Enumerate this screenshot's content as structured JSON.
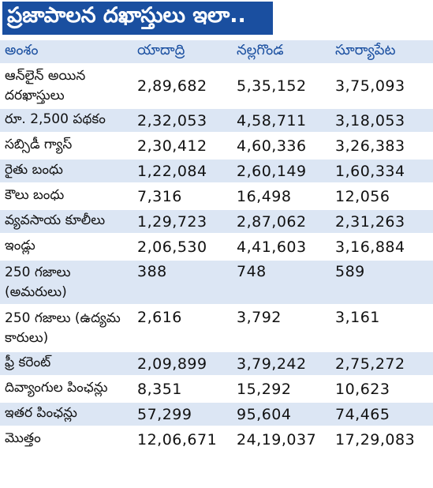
{
  "title": "ప్రజాపాలన దఖాస్తులు ఇలా..",
  "colors": {
    "title_bg": "#1a4fa0",
    "title_text": "#ffffff",
    "header_text": "#1a4fa0",
    "band": "#dce6f4"
  },
  "columns": [
    "అంశం",
    "యాదాద్రి",
    "నల్లగొండ",
    "సూర్యాపేట"
  ],
  "rows": [
    {
      "label": "ఆన్‌లైన్ అయిన దరఖాస్తులు",
      "values": [
        "2,89,682",
        "5,35,152",
        "3,75,093"
      ]
    },
    {
      "label": "రూ. 2,500 పథకం",
      "values": [
        "2,32,053",
        "4,58,711",
        "3,18,053"
      ]
    },
    {
      "label": "సబ్సిడీ గ్యాస్",
      "values": [
        "2,30,412",
        "4,60,336",
        "3,26,383"
      ]
    },
    {
      "label": "రైతు బంధు",
      "values": [
        "1,22,084",
        "2,60,149",
        "1,60,334"
      ]
    },
    {
      "label": "కౌలు బంధు",
      "values": [
        "7,316",
        "16,498",
        "12,056"
      ]
    },
    {
      "label": "వ్యవసాయ కూలీలు",
      "values": [
        "1,29,723",
        "2,87,062",
        "2,31,263"
      ]
    },
    {
      "label": "ఇండ్లు",
      "values": [
        "2,06,530",
        "4,41,603",
        "3,16,884"
      ]
    },
    {
      "label": "250 గజాలు (అమరులు)",
      "values": [
        "388",
        "748",
        "589"
      ]
    },
    {
      "label": "250 గజాలు (ఉద్యమ కారులు)",
      "values": [
        "2,616",
        "3,792",
        "3,161"
      ]
    },
    {
      "label": "ఫ్రీ కరెంట్",
      "values": [
        "2,09,899",
        "3,79,242",
        "2,75,272"
      ]
    },
    {
      "label": "దివ్యాంగుల పింఛన్లు",
      "values": [
        "8,351",
        "15,292",
        "10,623"
      ]
    },
    {
      "label": "ఇతర పింఛన్లు",
      "values": [
        "57,299",
        "95,604",
        "74,465"
      ]
    },
    {
      "label": "మొత్తం",
      "values": [
        "12,06,671",
        "24,19,037",
        "17,29,083"
      ]
    }
  ]
}
